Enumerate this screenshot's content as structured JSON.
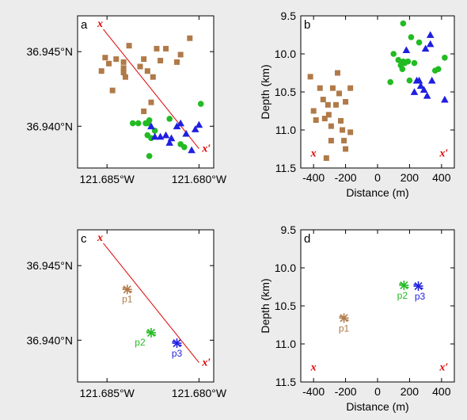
{
  "chart_data": [
    {
      "panel": "a",
      "type": "scatter",
      "xticks": [
        "121.685°W",
        "121.680°W"
      ],
      "yticks": [
        "36.945°N",
        "36.940°N"
      ],
      "xlim": [
        -121.6866,
        -121.6792
      ],
      "ylim": [
        36.9372,
        36.9474
      ],
      "profile": {
        "start_label": "x",
        "end_label": "x′",
        "start": [
          -121.6852,
          36.9465
        ],
        "end": [
          -121.68,
          36.9385
        ]
      },
      "series": [
        {
          "marker": "square",
          "color": "#b07a48",
          "points": [
            [
              -121.6853,
              36.9437
            ],
            [
              -121.6849,
              36.9442
            ],
            [
              -121.6845,
              36.9445
            ],
            [
              -121.6841,
              36.9443
            ],
            [
              -121.6841,
              36.9439
            ],
            [
              -121.6841,
              36.9436
            ],
            [
              -121.684,
              36.9433
            ],
            [
              -121.6838,
              36.9454
            ],
            [
              -121.683,
              36.9445
            ],
            [
              -121.6832,
              36.944
            ],
            [
              -121.6828,
              36.9437
            ],
            [
              -121.6825,
              36.9433
            ],
            [
              -121.6823,
              36.9452
            ],
            [
              -121.6821,
              36.9444
            ],
            [
              -121.6812,
              36.9443
            ],
            [
              -121.681,
              36.9448
            ],
            [
              -121.6805,
              36.9459
            ],
            [
              -121.6847,
              36.9424
            ],
            [
              -121.6851,
              36.9446
            ],
            [
              -121.683,
              36.941
            ],
            [
              -121.6826,
              36.9416
            ],
            [
              -121.6818,
              36.9452
            ]
          ]
        },
        {
          "marker": "circle",
          "color": "#22bb22",
          "points": [
            [
              -121.6836,
              36.9402
            ],
            [
              -121.6833,
              36.9402
            ],
            [
              -121.6829,
              36.9402
            ],
            [
              -121.6828,
              36.9402
            ],
            [
              -121.6827,
              36.9404
            ],
            [
              -121.6828,
              36.9394
            ],
            [
              -121.6826,
              36.9392
            ],
            [
              -121.6824,
              36.9397
            ],
            [
              -121.6816,
              36.9405
            ],
            [
              -121.681,
              36.9388
            ],
            [
              -121.6808,
              36.9386
            ],
            [
              -121.6799,
              36.9415
            ],
            [
              -121.6827,
              36.938
            ]
          ]
        },
        {
          "marker": "triangle",
          "color": "#1f1fe0",
          "points": [
            [
              -121.6826,
              36.94
            ],
            [
              -121.6824,
              36.9393
            ],
            [
              -121.6821,
              36.9393
            ],
            [
              -121.6818,
              36.9394
            ],
            [
              -121.6816,
              36.9389
            ],
            [
              -121.6815,
              36.9392
            ],
            [
              -121.6812,
              36.94
            ],
            [
              -121.6807,
              36.9395
            ],
            [
              -121.6802,
              36.9398
            ],
            [
              -121.68,
              36.9401
            ],
            [
              -121.6804,
              36.9384
            ],
            [
              -121.681,
              36.9402
            ]
          ]
        }
      ]
    },
    {
      "panel": "b",
      "type": "scatter",
      "xlabel": "Distance (m)",
      "ylabel": "Depth (km)",
      "xlim": [
        -480,
        480
      ],
      "ylim": [
        11.5,
        9.5
      ],
      "xticks": [
        -400,
        -200,
        0,
        200,
        400
      ],
      "yticks": [
        9.5,
        10.0,
        10.5,
        11.0,
        11.5
      ],
      "profile": {
        "start_label": "x",
        "end_label": "x′"
      },
      "series": [
        {
          "marker": "square",
          "color": "#b07a48",
          "points": [
            [
              -420,
              10.3
            ],
            [
              -400,
              10.75
            ],
            [
              -385,
              10.87
            ],
            [
              -360,
              10.45
            ],
            [
              -340,
              10.6
            ],
            [
              -330,
              10.85
            ],
            [
              -310,
              10.67
            ],
            [
              -305,
              10.8
            ],
            [
              -290,
              10.95
            ],
            [
              -280,
              10.45
            ],
            [
              -260,
              10.67
            ],
            [
              -250,
              10.25
            ],
            [
              -240,
              10.52
            ],
            [
              -230,
              10.88
            ],
            [
              -220,
              11.0
            ],
            [
              -210,
              11.14
            ],
            [
              -200,
              10.63
            ],
            [
              -200,
              11.25
            ],
            [
              -170,
              10.45
            ],
            [
              -170,
              11.03
            ],
            [
              -290,
              11.14
            ],
            [
              -320,
              11.37
            ]
          ]
        },
        {
          "marker": "circle",
          "color": "#22bb22",
          "points": [
            [
              80,
              10.37
            ],
            [
              100,
              10.0
            ],
            [
              130,
              10.08
            ],
            [
              145,
              10.15
            ],
            [
              155,
              10.2
            ],
            [
              160,
              10.1
            ],
            [
              170,
              10.12
            ],
            [
              190,
              10.1
            ],
            [
              200,
              10.35
            ],
            [
              210,
              9.78
            ],
            [
              230,
              10.12
            ],
            [
              260,
              9.85
            ],
            [
              360,
              10.22
            ],
            [
              380,
              10.2
            ],
            [
              420,
              10.05
            ],
            [
              160,
              9.6
            ]
          ]
        },
        {
          "marker": "triangle",
          "color": "#1f1fe0",
          "points": [
            [
              180,
              9.95
            ],
            [
              230,
              10.5
            ],
            [
              245,
              10.35
            ],
            [
              260,
              10.35
            ],
            [
              270,
              10.42
            ],
            [
              290,
              10.47
            ],
            [
              300,
              9.93
            ],
            [
              310,
              10.55
            ],
            [
              330,
              9.75
            ],
            [
              330,
              9.87
            ],
            [
              340,
              10.35
            ],
            [
              420,
              10.6
            ]
          ]
        }
      ]
    },
    {
      "panel": "c",
      "type": "scatter",
      "xticks": [
        "121.685°W",
        "121.680°W"
      ],
      "yticks": [
        "36.945°N",
        "36.940°N"
      ],
      "xlim": [
        -121.6866,
        -121.6792
      ],
      "ylim": [
        36.9372,
        36.9474
      ],
      "profile": {
        "start_label": "x",
        "end_label": "x′",
        "start": [
          -121.6852,
          36.9465
        ],
        "end": [
          -121.68,
          36.9385
        ]
      },
      "clusters": [
        {
          "label": "p1",
          "color": "#b07a48",
          "x": -121.6839,
          "y": 36.9434
        },
        {
          "label": "p2",
          "color": "#22bb22",
          "x": -121.6826,
          "y": 36.9405
        },
        {
          "label": "p3",
          "color": "#1f1fe0",
          "x": -121.6812,
          "y": 36.9398
        }
      ]
    },
    {
      "panel": "d",
      "type": "scatter",
      "xlabel": "Distance (m)",
      "ylabel": "Depth (km)",
      "xlim": [
        -480,
        480
      ],
      "ylim": [
        11.5,
        9.5
      ],
      "xticks": [
        -400,
        -200,
        0,
        200,
        400
      ],
      "yticks": [
        9.5,
        10.0,
        10.5,
        11.0,
        11.5
      ],
      "profile": {
        "start_label": "x",
        "end_label": "x′"
      },
      "clusters": [
        {
          "label": "p1",
          "color": "#b07a48",
          "x": -210,
          "y": 10.66
        },
        {
          "label": "p2",
          "color": "#22bb22",
          "x": 165,
          "y": 10.23
        },
        {
          "label": "p3",
          "color": "#1f1fe0",
          "x": 255,
          "y": 10.24
        }
      ]
    }
  ]
}
